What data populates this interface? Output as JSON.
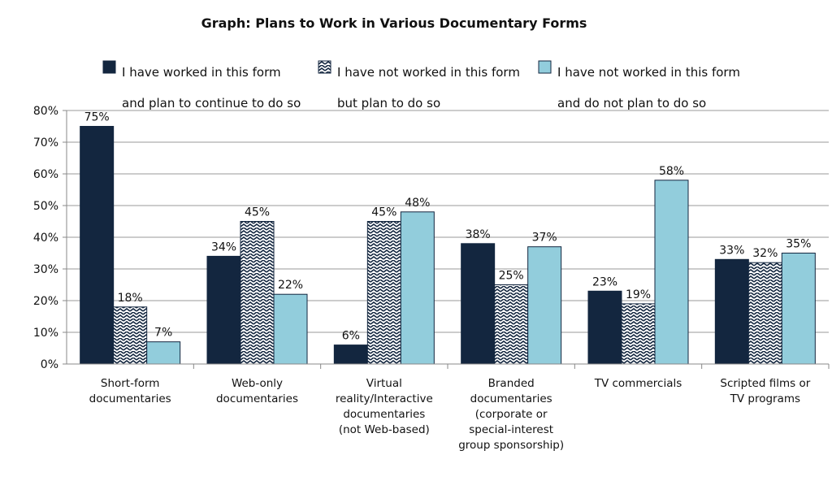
{
  "chart_data": {
    "type": "bar",
    "title": "Graph: Plans to Work in Various Documentary Forms",
    "xlabel": "",
    "ylabel": "",
    "ylim": [
      0,
      80
    ],
    "yticks": [
      "0%",
      "10%",
      "20%",
      "30%",
      "40%",
      "50%",
      "60%",
      "70%",
      "80%"
    ],
    "grid": true,
    "legend_position": "top",
    "categories": [
      [
        "Short-form",
        "documentaries"
      ],
      [
        "Web-only",
        "documentaries"
      ],
      [
        "Virtual",
        "reality/Interactive",
        "documentaries",
        "(not Web-based)"
      ],
      [
        "Branded",
        "documentaries",
        "(corporate or",
        "special-interest",
        "group sponsorship)"
      ],
      [
        "TV commercials"
      ],
      [
        "Scripted films or",
        "TV programs"
      ]
    ],
    "series": [
      {
        "name": [
          "I have worked in this form",
          "and plan to continue to do so"
        ],
        "fill": "solid",
        "color": "#13263f",
        "values": [
          75,
          34,
          6,
          38,
          23,
          33
        ],
        "labels": [
          "75%",
          "34%",
          "6%",
          "38%",
          "23%",
          "33%"
        ]
      },
      {
        "name": [
          "I have not worked in this form",
          "but plan to do so"
        ],
        "fill": "zigzag-pattern",
        "color": "#13263f",
        "values": [
          18,
          45,
          45,
          25,
          19,
          32
        ],
        "labels": [
          "18%",
          "45%",
          "45%",
          "25%",
          "19%",
          "32%"
        ]
      },
      {
        "name": [
          "I have not worked in this form",
          "and do not plan to do so"
        ],
        "fill": "solid",
        "color": "#92cddc",
        "values": [
          7,
          22,
          48,
          37,
          58,
          35
        ],
        "labels": [
          "7%",
          "22%",
          "48%",
          "37%",
          "58%",
          "35%"
        ]
      }
    ]
  }
}
